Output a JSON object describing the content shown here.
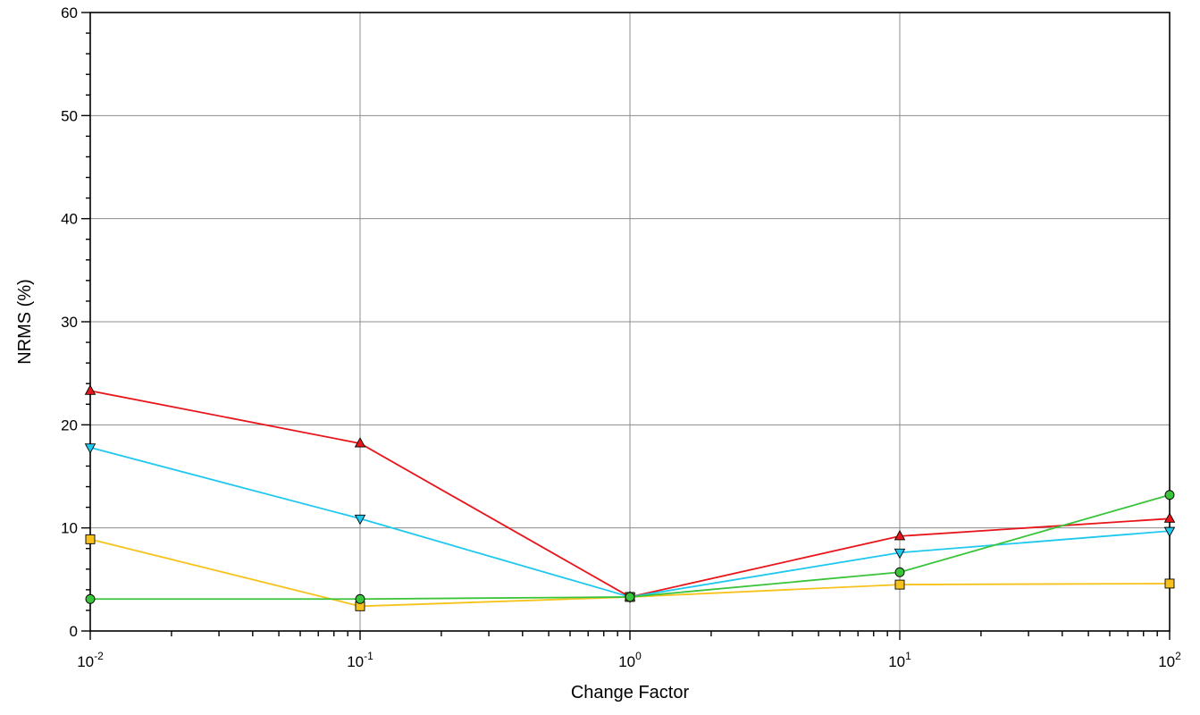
{
  "chart_data": {
    "type": "line",
    "xlabel": "Change Factor",
    "ylabel": "NRMS (%)",
    "x_scale": "log",
    "xlim": [
      0.01,
      100
    ],
    "ylim": [
      0,
      60
    ],
    "y_major_ticks": [
      0,
      10,
      20,
      30,
      40,
      50,
      60
    ],
    "y_tick_labels": [
      "0",
      "10",
      "20",
      "30",
      "40",
      "50",
      "60"
    ],
    "x_major_ticks": [
      0.01,
      0.1,
      1,
      10,
      100
    ],
    "x_tick_labels": [
      {
        "base": "10",
        "exp": "-2"
      },
      {
        "base": "10",
        "exp": "-1"
      },
      {
        "base": "10",
        "exp": "0"
      },
      {
        "base": "10",
        "exp": "1"
      },
      {
        "base": "10",
        "exp": "2"
      }
    ],
    "grid": true,
    "legend": "none",
    "x": [
      0.01,
      0.1,
      1,
      10,
      100
    ],
    "series": [
      {
        "marker": "triangle-up",
        "color": "#e8161b",
        "values": [
          23.3,
          18.2,
          3.3,
          9.2,
          10.9
        ]
      },
      {
        "marker": "triangle-down",
        "color": "#1ec8ee",
        "values": [
          17.8,
          10.9,
          3.3,
          7.6,
          9.7
        ]
      },
      {
        "marker": "square",
        "color": "#f8c21c",
        "values": [
          8.9,
          2.4,
          3.3,
          4.5,
          4.6
        ]
      },
      {
        "marker": "circle",
        "color": "#3ac43a",
        "values": [
          3.1,
          3.1,
          3.3,
          5.7,
          13.2
        ]
      }
    ]
  }
}
